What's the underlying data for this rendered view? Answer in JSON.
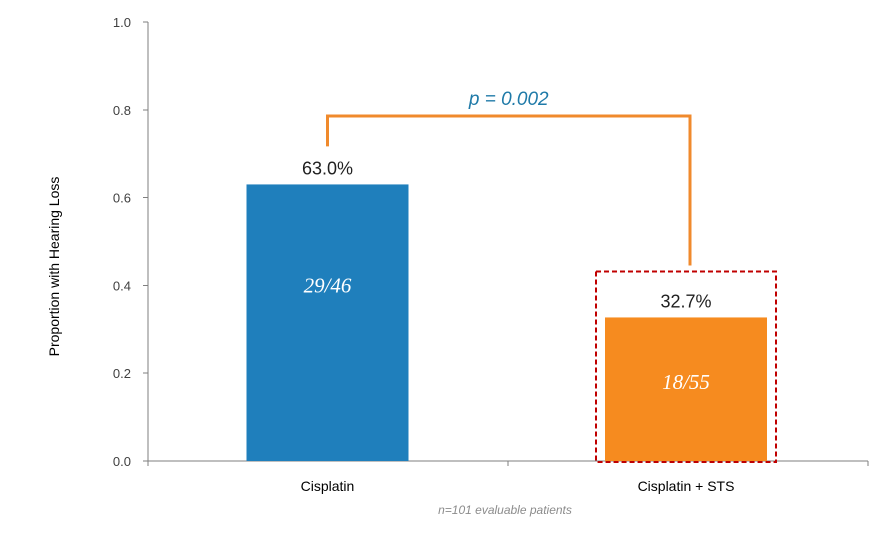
{
  "chart_data": {
    "type": "bar",
    "categories": [
      "Cisplatin",
      "Cisplatin + STS"
    ],
    "values": [
      0.63,
      0.327
    ],
    "value_labels": [
      "63.0%",
      "32.7%"
    ],
    "inner_labels": [
      "29/46",
      "18/55"
    ],
    "bar_colors": [
      "#1f7fbc",
      "#f68b1f"
    ],
    "ylabel": "Proportion with Hearing Loss",
    "xlabel": "",
    "ylim": [
      0,
      1.0
    ],
    "yticks": [
      "0.0",
      "0.2",
      "0.4",
      "0.6",
      "0.8",
      "1.0"
    ],
    "ytick_values": [
      0,
      0.2,
      0.4,
      0.6,
      0.8,
      1.0
    ],
    "grid": false,
    "legend": "none",
    "annotation": {
      "text": "p = 0.002",
      "color": "#f08a2c",
      "text_color": "#1f7aa8"
    },
    "highlight": {
      "category": "Cisplatin + STS",
      "color": "#c00000",
      "style": "dashed"
    },
    "footnote": "n=101 evaluable patients"
  }
}
